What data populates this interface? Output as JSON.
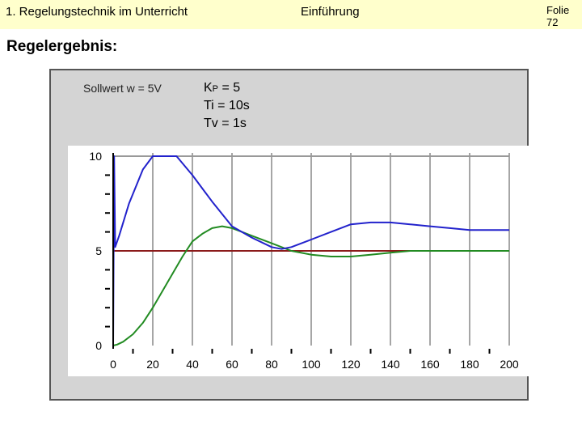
{
  "header": {
    "left_title": "1. Regelungstechnik im Unterricht",
    "center_title": "Einführung",
    "slide_number": "Folie 72"
  },
  "page_title": "Regelergebnis:",
  "setpoint_label": "Sollwert w = 5V",
  "parameters": {
    "kp_main": "K",
    "kp_sub": "P",
    "kp_value": " = 5",
    "ti": "Ti = 10s",
    "tv": "Tv = 1s"
  },
  "colors": {
    "header_bg": "#ffffcc",
    "panel_bg": "#d4d4d4",
    "series_controller": "#2222cc",
    "series_output": "#228b22",
    "setpoint": "#8b1a1a",
    "limit": "#999999"
  },
  "chart_data": {
    "type": "line",
    "xlim": [
      0,
      200
    ],
    "ylim": [
      0,
      10
    ],
    "x_ticks": [
      "0",
      "20",
      "40",
      "60",
      "80",
      "100",
      "120",
      "140",
      "160",
      "180",
      "200"
    ],
    "y_ticks": [
      "0",
      "5",
      "10"
    ],
    "grid": "vertical",
    "series": [
      {
        "color": "#2222cc",
        "x": [
          0,
          0.5,
          1,
          3,
          8,
          15,
          20,
          25,
          32,
          40,
          50,
          60,
          70,
          80,
          85,
          90,
          100,
          110,
          120,
          130,
          140,
          150,
          160,
          170,
          180,
          200
        ],
        "y": [
          0,
          10,
          5.2,
          5.8,
          7.5,
          9.3,
          10,
          10,
          10,
          9.0,
          7.6,
          6.3,
          5.7,
          5.2,
          5.1,
          5.2,
          5.6,
          6.0,
          6.4,
          6.5,
          6.5,
          6.4,
          6.3,
          6.2,
          6.1,
          6.1
        ]
      },
      {
        "color": "#228b22",
        "x": [
          0,
          2,
          5,
          10,
          15,
          20,
          25,
          30,
          35,
          40,
          45,
          50,
          55,
          60,
          65,
          70,
          80,
          90,
          100,
          110,
          120,
          130,
          140,
          150,
          160,
          170,
          180,
          200
        ],
        "y": [
          0,
          0.05,
          0.2,
          0.6,
          1.2,
          2.0,
          2.9,
          3.8,
          4.7,
          5.5,
          5.9,
          6.2,
          6.3,
          6.2,
          6.0,
          5.8,
          5.4,
          5.0,
          4.8,
          4.7,
          4.7,
          4.8,
          4.9,
          5.0,
          5.0,
          5.0,
          5.0,
          5.0
        ]
      },
      {
        "color": "#8b1a1a",
        "x": [
          0,
          200
        ],
        "y": [
          5,
          5
        ]
      },
      {
        "color": "#999999",
        "x": [
          0,
          200
        ],
        "y": [
          10,
          10
        ]
      }
    ]
  }
}
